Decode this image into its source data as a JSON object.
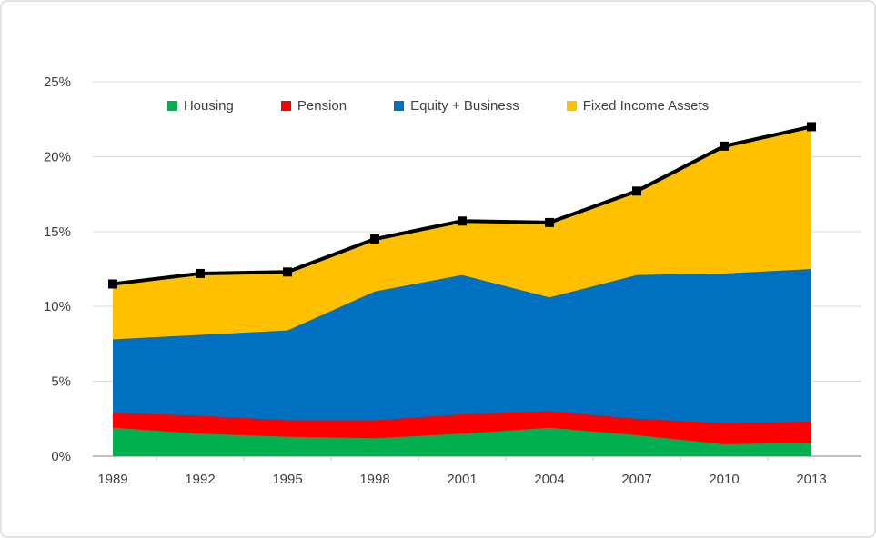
{
  "chart_data": {
    "type": "area",
    "stacked": true,
    "title": "",
    "xlabel": "",
    "ylabel": "",
    "categories": [
      "1989",
      "1992",
      "1995",
      "1998",
      "2001",
      "2004",
      "2007",
      "2010",
      "2013"
    ],
    "series": [
      {
        "name": "Housing",
        "color": "#00B050",
        "values": [
          1.9,
          1.5,
          1.3,
          1.2,
          1.5,
          1.9,
          1.4,
          0.8,
          0.9
        ]
      },
      {
        "name": "Pension",
        "color": "#FF0000",
        "values": [
          1.0,
          1.2,
          1.1,
          1.2,
          1.3,
          1.1,
          1.1,
          1.4,
          1.4
        ]
      },
      {
        "name": "Equity + Business",
        "color": "#0070C0",
        "values": [
          4.9,
          5.4,
          6.0,
          8.6,
          9.3,
          7.6,
          9.6,
          10.0,
          10.2
        ]
      },
      {
        "name": "Fixed Income Assets",
        "color": "#FFC000",
        "values": [
          3.7,
          4.1,
          3.9,
          3.5,
          3.6,
          5.0,
          5.6,
          8.5,
          9.5
        ]
      }
    ],
    "total_line": {
      "name": "Total",
      "color": "#000000",
      "marker": "square",
      "values": [
        11.5,
        12.2,
        12.3,
        14.5,
        15.7,
        15.6,
        17.7,
        20.7,
        22.0
      ]
    },
    "ylim": [
      0,
      25
    ],
    "yticks": {
      "values": [
        0,
        5,
        10,
        15,
        20,
        25
      ],
      "labels": [
        "0%",
        "5%",
        "10%",
        "15%",
        "20%",
        "25%"
      ]
    },
    "grid": true,
    "legend_position": "top"
  },
  "colors": {
    "background": "#FFFFFF",
    "gridline": "#DADADA",
    "axis_line": "#C0C0C0",
    "text": "#404040",
    "total_line": "#000000"
  }
}
